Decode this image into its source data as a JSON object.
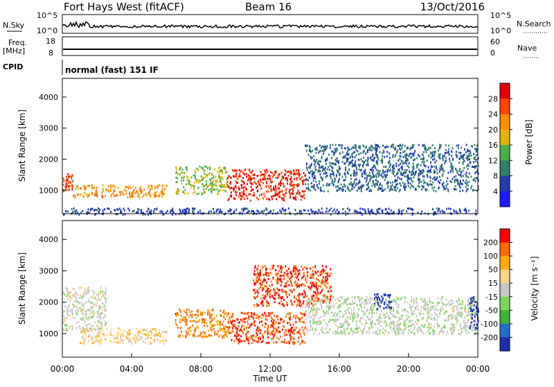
{
  "header": {
    "station": "Fort Hays West (fitACF)",
    "beam": "Beam 16",
    "date": "13/Oct/2016"
  },
  "params_panel": {
    "nsky_label": "N.Sky",
    "nsearch_label": "N.Search",
    "noise_ticks_left": [
      "10^5",
      "10^0"
    ],
    "noise_ticks_right": [
      "10^5",
      "10^0"
    ],
    "freq_label": "Freq.",
    "freq_unit": "[MHz]",
    "freq_ticks": [
      "18",
      "8"
    ],
    "nave_label": "Nave",
    "nave_ticks": [
      "60",
      "0"
    ],
    "cpid_label": "CPID",
    "cpid_value": "normal (fast) 151 IF"
  },
  "colors": {
    "power_scale": [
      "#1a1aff",
      "#1f3fb0",
      "#2e7f6a",
      "#4cae4c",
      "#e6b400",
      "#ff8c00",
      "#ff4500",
      "#e00000"
    ],
    "velocity_scale": [
      "#ff0000",
      "#ff6a00",
      "#ffaa00",
      "#ffd27f",
      "#c8c8c8",
      "#7fd65a",
      "#3cb43c",
      "#1f6fd0",
      "#1a2fb0"
    ]
  },
  "chart_data": [
    {
      "type": "heatmap",
      "name": "power",
      "ylabel": "Slant Range [km]",
      "yticks": [
        "1000",
        "2000",
        "3000",
        "4000"
      ],
      "ylim": [
        250,
        4600
      ],
      "xlim": [
        0,
        24
      ],
      "colorbar_label": "Power [dB]",
      "colorbar_ticks": [
        "4",
        "8",
        "12",
        "16",
        "20",
        "24",
        "28"
      ],
      "colorbar_range": [
        0,
        32
      ],
      "regions": [
        {
          "t": [
            0.0,
            0.6
          ],
          "r": [
            1000,
            1550
          ],
          "v": 26
        },
        {
          "t": [
            0.6,
            6.0
          ],
          "r": [
            800,
            1200
          ],
          "v": 22
        },
        {
          "t": [
            6.5,
            9.5
          ],
          "r": [
            900,
            1800
          ],
          "v": 16
        },
        {
          "t": [
            9.5,
            14.0
          ],
          "r": [
            700,
            1700
          ],
          "v": 28
        },
        {
          "t": [
            14.0,
            24.0
          ],
          "r": [
            1000,
            2500
          ],
          "v": 8
        },
        {
          "t": [
            0.0,
            24.0
          ],
          "r": [
            250,
            450
          ],
          "v": 6
        }
      ]
    },
    {
      "type": "heatmap",
      "name": "velocity",
      "ylabel": "Slant Range [km]",
      "yticks": [
        "1000",
        "2000",
        "3000",
        "4000"
      ],
      "ylim": [
        250,
        4600
      ],
      "xlabel": "Time UT",
      "xticks": [
        "00:00",
        "04:00",
        "08:00",
        "12:00",
        "16:00",
        "20:00",
        "00:00"
      ],
      "xlim": [
        0,
        24
      ],
      "colorbar_label": "Velocity [m s⁻¹]",
      "colorbar_ticks": [
        "200",
        "100",
        "50",
        "15",
        "-15",
        "-50",
        "-100",
        "-200"
      ],
      "colorbar_range": [
        -250,
        250
      ],
      "regions": [
        {
          "t": [
            0.0,
            2.5
          ],
          "r": [
            1100,
            2500
          ],
          "v": 0
        },
        {
          "t": [
            1.0,
            6.0
          ],
          "r": [
            700,
            1200
          ],
          "v": 60
        },
        {
          "t": [
            6.5,
            9.5
          ],
          "r": [
            900,
            1800
          ],
          "v": 150
        },
        {
          "t": [
            9.5,
            14.0
          ],
          "r": [
            700,
            1700
          ],
          "v": 180
        },
        {
          "t": [
            11.0,
            15.5
          ],
          "r": [
            1900,
            3200
          ],
          "v": 200
        },
        {
          "t": [
            14.0,
            24.0
          ],
          "r": [
            1000,
            2200
          ],
          "v": -10
        },
        {
          "t": [
            18.0,
            19.0
          ],
          "r": [
            1800,
            2300
          ],
          "v": -230
        },
        {
          "t": [
            23.5,
            24.0
          ],
          "r": [
            1100,
            2200
          ],
          "v": -230
        }
      ]
    }
  ]
}
